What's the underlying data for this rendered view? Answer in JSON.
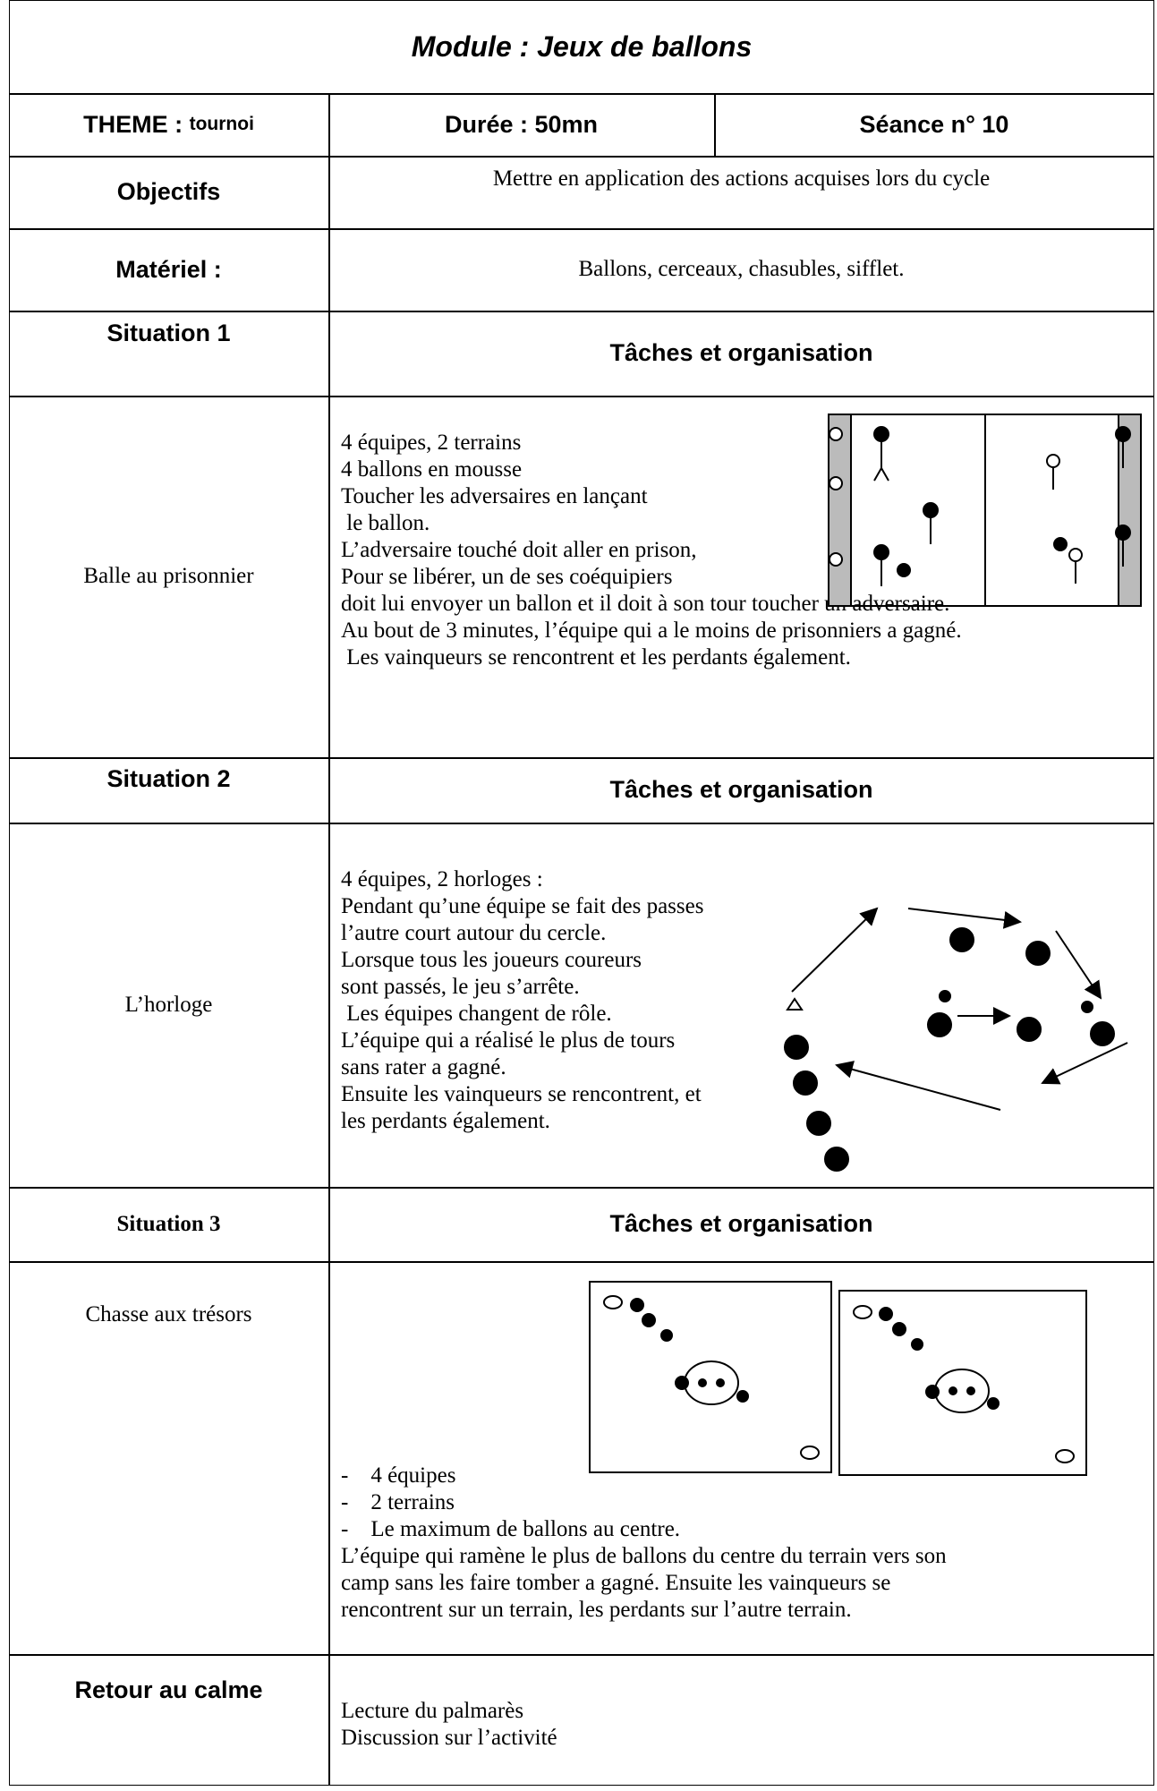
{
  "header": {
    "title": "Module : Jeux de ballons"
  },
  "info": {
    "theme_label": "THEME : ",
    "theme": "tournoi",
    "duree": "Durée : 50mn",
    "seance": "Séance n° 10"
  },
  "objectifs": {
    "label": "Objectifs",
    "text": "Mettre en application des actions acquises lors du cycle"
  },
  "materiel": {
    "label": "Matériel :",
    "text": "Ballons, cerceaux, chasubles, sifflet."
  },
  "situations": [
    {
      "label": "Situation 1",
      "header": "Tâches et organisation",
      "name": "Balle au prisonnier",
      "lines": [
        "4 équipes, 2 terrains",
        "4 ballons en mousse",
        "Toucher les adversaires en lançant",
        " le ballon.",
        "L’adversaire touché doit aller en prison,",
        "Pour se libérer, un de ses coéquipiers",
        "doit lui envoyer un ballon et il doit à son tour toucher un adversaire.",
        "Au bout de 3 minutes, l’équipe qui a le moins de prisonniers a gagné.",
        " Les vainqueurs se rencontrent et les perdants également."
      ]
    },
    {
      "label": "Situation 2",
      "header": "Tâches et organisation",
      "name": "L’horloge",
      "lines": [
        "4 équipes, 2 horloges :",
        "Pendant qu’une équipe se fait des passes",
        "l’autre court autour du cercle.",
        "Lorsque tous les joueurs coureurs",
        "sont passés, le jeu s’arrête.",
        " Les équipes changent de rôle.",
        "L’équipe qui a réalisé le plus de tours",
        "sans rater a gagné.",
        "Ensuite les vainqueurs se rencontrent, et",
        "les perdants également."
      ]
    },
    {
      "label": "Situation 3",
      "header": "Tâches et organisation",
      "name": "Chasse aux trésors",
      "lines": [
        "-    4 équipes",
        "-    2 terrains",
        "-    Le maximum de ballons au centre.",
        "L’équipe qui ramène le plus de ballons du centre du terrain vers son",
        "camp sans les faire tomber a gagné. Ensuite les vainqueurs se",
        "rencontrent sur un terrain, les perdants sur l’autre terrain."
      ]
    }
  ],
  "retour": {
    "label": "Retour au calme",
    "lines": [
      "Lecture du palmarès",
      "Discussion sur l’activité"
    ]
  }
}
